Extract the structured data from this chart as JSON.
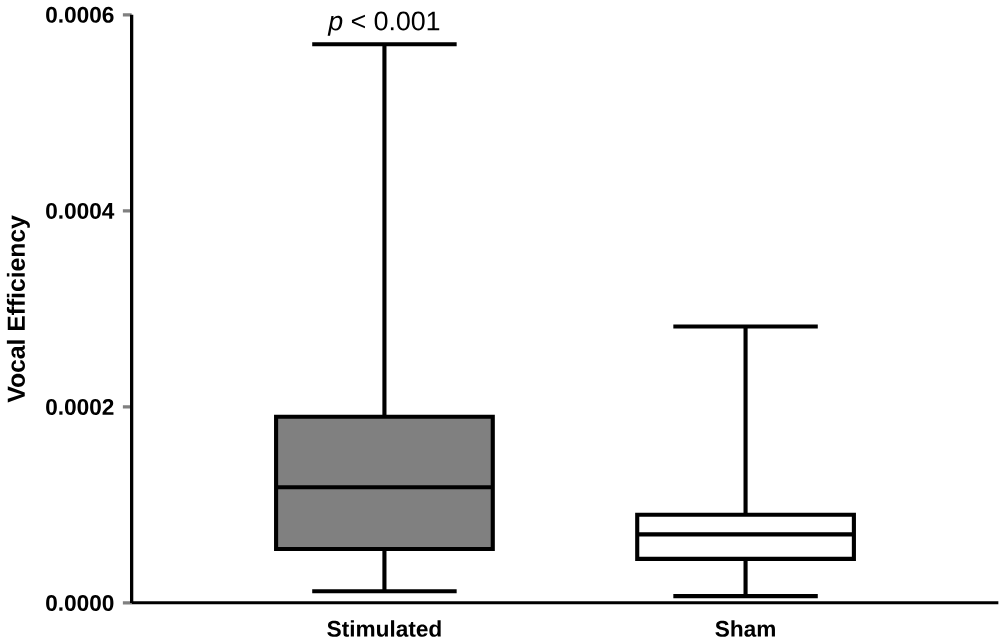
{
  "chart_data": {
    "type": "box",
    "ylabel": "Vocal Efficiency",
    "categories": [
      "Stimulated",
      "Sham"
    ],
    "boxes": [
      {
        "low": 1.2e-05,
        "q1": 5.5e-05,
        "median": 0.000118,
        "q3": 0.00019,
        "high": 0.00057
      },
      {
        "low": 7e-06,
        "q1": 4.5e-05,
        "median": 7e-05,
        "q3": 9e-05,
        "high": 0.000282
      }
    ],
    "colors": [
      "#808080",
      "#ffffff"
    ],
    "ylim": [
      0,
      0.0006
    ],
    "yticks": [
      {
        "value": 0,
        "label": "0.0000"
      },
      {
        "value": 0.0002,
        "label": "0.0002"
      },
      {
        "value": 0.0004,
        "label": "0.0004"
      },
      {
        "value": 0.0006,
        "label": "0.0006"
      }
    ],
    "annotations": [
      "*p* < 0.001"
    ],
    "grid": false
  }
}
